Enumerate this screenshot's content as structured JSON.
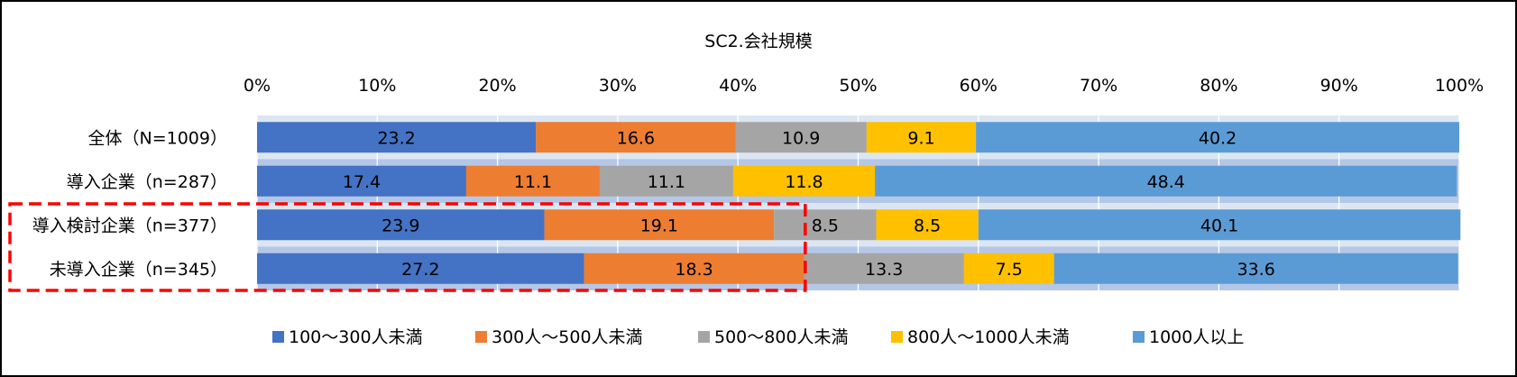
{
  "chart_data": {
    "type": "bar",
    "orientation": "horizontal",
    "stacked": "percent",
    "title": "SC2.会社規模",
    "categories": [
      "全体（N=1009）",
      "導入企業（n=287）",
      "導入検討企業（n=377）",
      "未導入企業（n=345）"
    ],
    "series": [
      {
        "name": "100～300人未満",
        "color": "#4472C4",
        "values": [
          23.2,
          17.4,
          23.9,
          27.2
        ]
      },
      {
        "name": "300人～500人未満",
        "color": "#ED7D31",
        "values": [
          16.6,
          11.1,
          19.1,
          18.3
        ]
      },
      {
        "name": "500～800人未満",
        "color": "#A5A5A5",
        "values": [
          10.9,
          11.1,
          8.5,
          13.3
        ]
      },
      {
        "name": "800人～1000人未満",
        "color": "#FFC000",
        "values": [
          9.1,
          11.8,
          8.5,
          7.5
        ]
      },
      {
        "name": "1000人以上",
        "color": "#5B9BD5",
        "values": [
          40.2,
          48.4,
          40.1,
          33.6
        ]
      }
    ],
    "xlim": [
      0,
      100
    ],
    "xticks": [
      "0%",
      "10%",
      "20%",
      "30%",
      "40%",
      "50%",
      "60%",
      "70%",
      "80%",
      "90%",
      "100%"
    ],
    "grid": true,
    "legend": "bottom",
    "highlight": {
      "description": "red dashed box",
      "categories": [
        "導入検討企業（n=377）",
        "未導入企業（n=345）"
      ],
      "color": "#FF0000"
    }
  }
}
